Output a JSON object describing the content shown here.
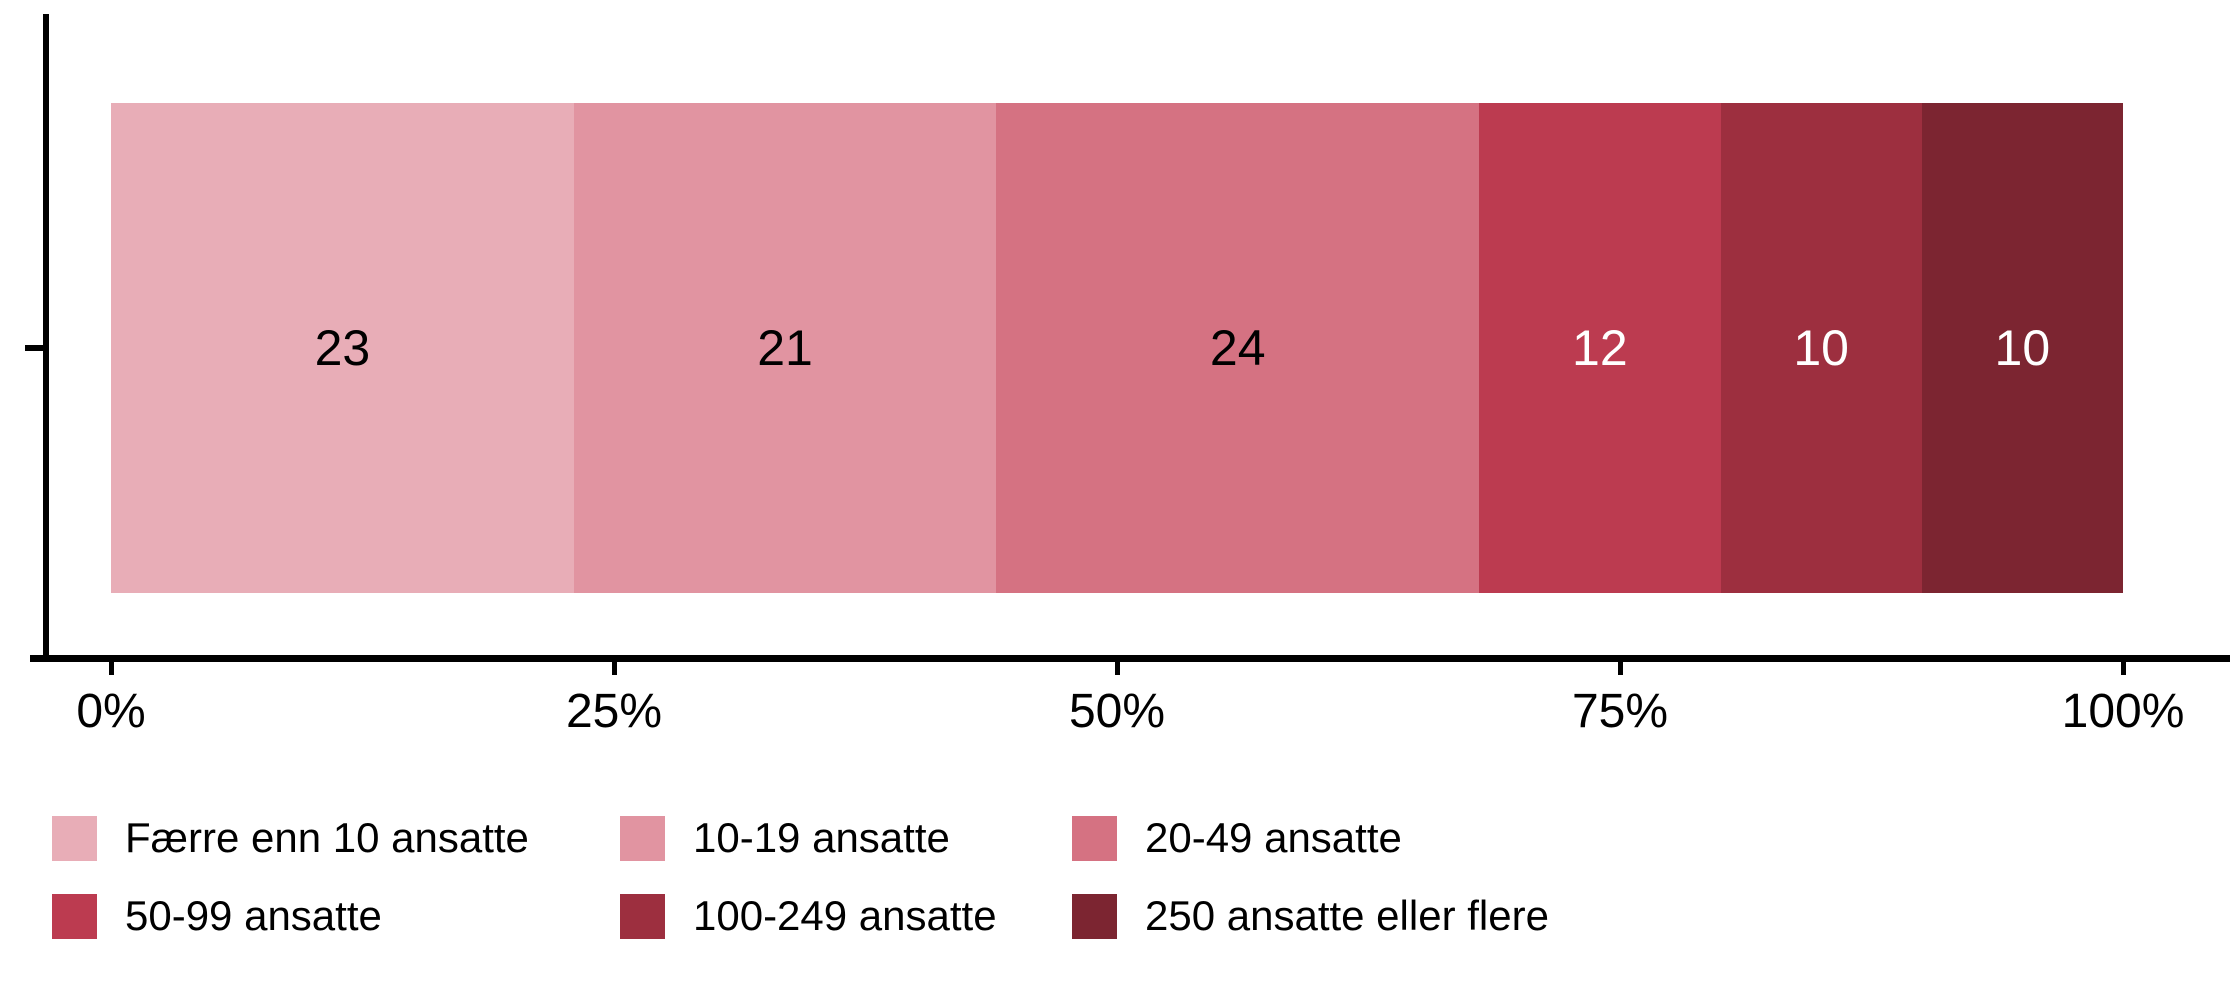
{
  "chart_data": {
    "type": "bar",
    "variant": "stacked-percent",
    "orientation": "horizontal",
    "categories": [
      ""
    ],
    "series": [
      {
        "name": "Færre enn 10 ansatte",
        "value": 23,
        "color": "#e8adb7",
        "label_color": "#000000"
      },
      {
        "name": "10-19 ansatte",
        "value": 21,
        "color": "#e194a1",
        "label_color": "#000000"
      },
      {
        "name": "20-49 ansatte",
        "value": 24,
        "color": "#d57282",
        "label_color": "#000000"
      },
      {
        "name": "50-99 ansatte",
        "value": 12,
        "color": "#bc3b50",
        "label_color": "#ffffff"
      },
      {
        "name": "100-249 ansatte",
        "value": 10,
        "color": "#9d2f3f",
        "label_color": "#ffffff"
      },
      {
        "name": "250 ansatte eller flere",
        "value": 10,
        "color": "#7c2531",
        "label_color": "#ffffff"
      }
    ],
    "x_ticks": [
      {
        "label": "0%",
        "position": 0
      },
      {
        "label": "25%",
        "position": 25
      },
      {
        "label": "50%",
        "position": 50
      },
      {
        "label": "75%",
        "position": 75
      },
      {
        "label": "100%",
        "position": 100
      }
    ],
    "xlim": [
      0,
      100
    ],
    "grid": false,
    "legend_position": "bottom",
    "axis_color": "#000000",
    "text_color": "#000000",
    "background_color": "#ffffff"
  }
}
